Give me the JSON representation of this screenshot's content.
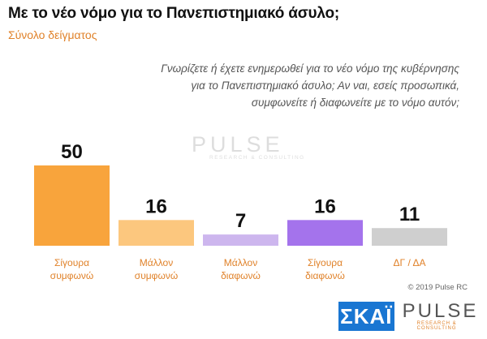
{
  "header": {
    "title": "Με το νέο νόμο για το Πανεπιστημιακό άσυλο;",
    "subtitle": "Σύνολο δείγματος",
    "question_lines": [
      "Γνωρίζετε ή έχετε ενημερωθεί για το νέο νόμο της κυβέρνησης",
      "για το Πανεπιστημιακό άσυλο; Αν ναι, εσείς προσωπικά,",
      "συμφωνείτε ή διαφωνείτε με το νόμο αυτόν;"
    ]
  },
  "watermark": {
    "brand": "PULSE",
    "tagline": "RESEARCH & CONSULTING"
  },
  "chart_data": {
    "type": "bar",
    "categories": [
      [
        "Σίγουρα",
        "συμφωνώ"
      ],
      [
        "Μάλλον",
        "συμφωνώ"
      ],
      [
        "Μάλλον",
        "διαφωνώ"
      ],
      [
        "Σίγουρα",
        "διαφωνώ"
      ],
      [
        "ΔΓ / ΔΑ"
      ]
    ],
    "values": [
      50,
      16,
      7,
      16,
      11
    ],
    "colors": [
      "#f8a43c",
      "#fcc77e",
      "#cdb6ee",
      "#a473ec",
      "#cfcfcf"
    ],
    "ylim": [
      0,
      50
    ],
    "grid": false
  },
  "footer": {
    "copyright": "© 2019 Pulse RC",
    "skai_logo": "ΣΚΑΪ",
    "pulse_logo": "PULSE",
    "pulse_tagline": "RESEARCH & CONSULTING"
  }
}
